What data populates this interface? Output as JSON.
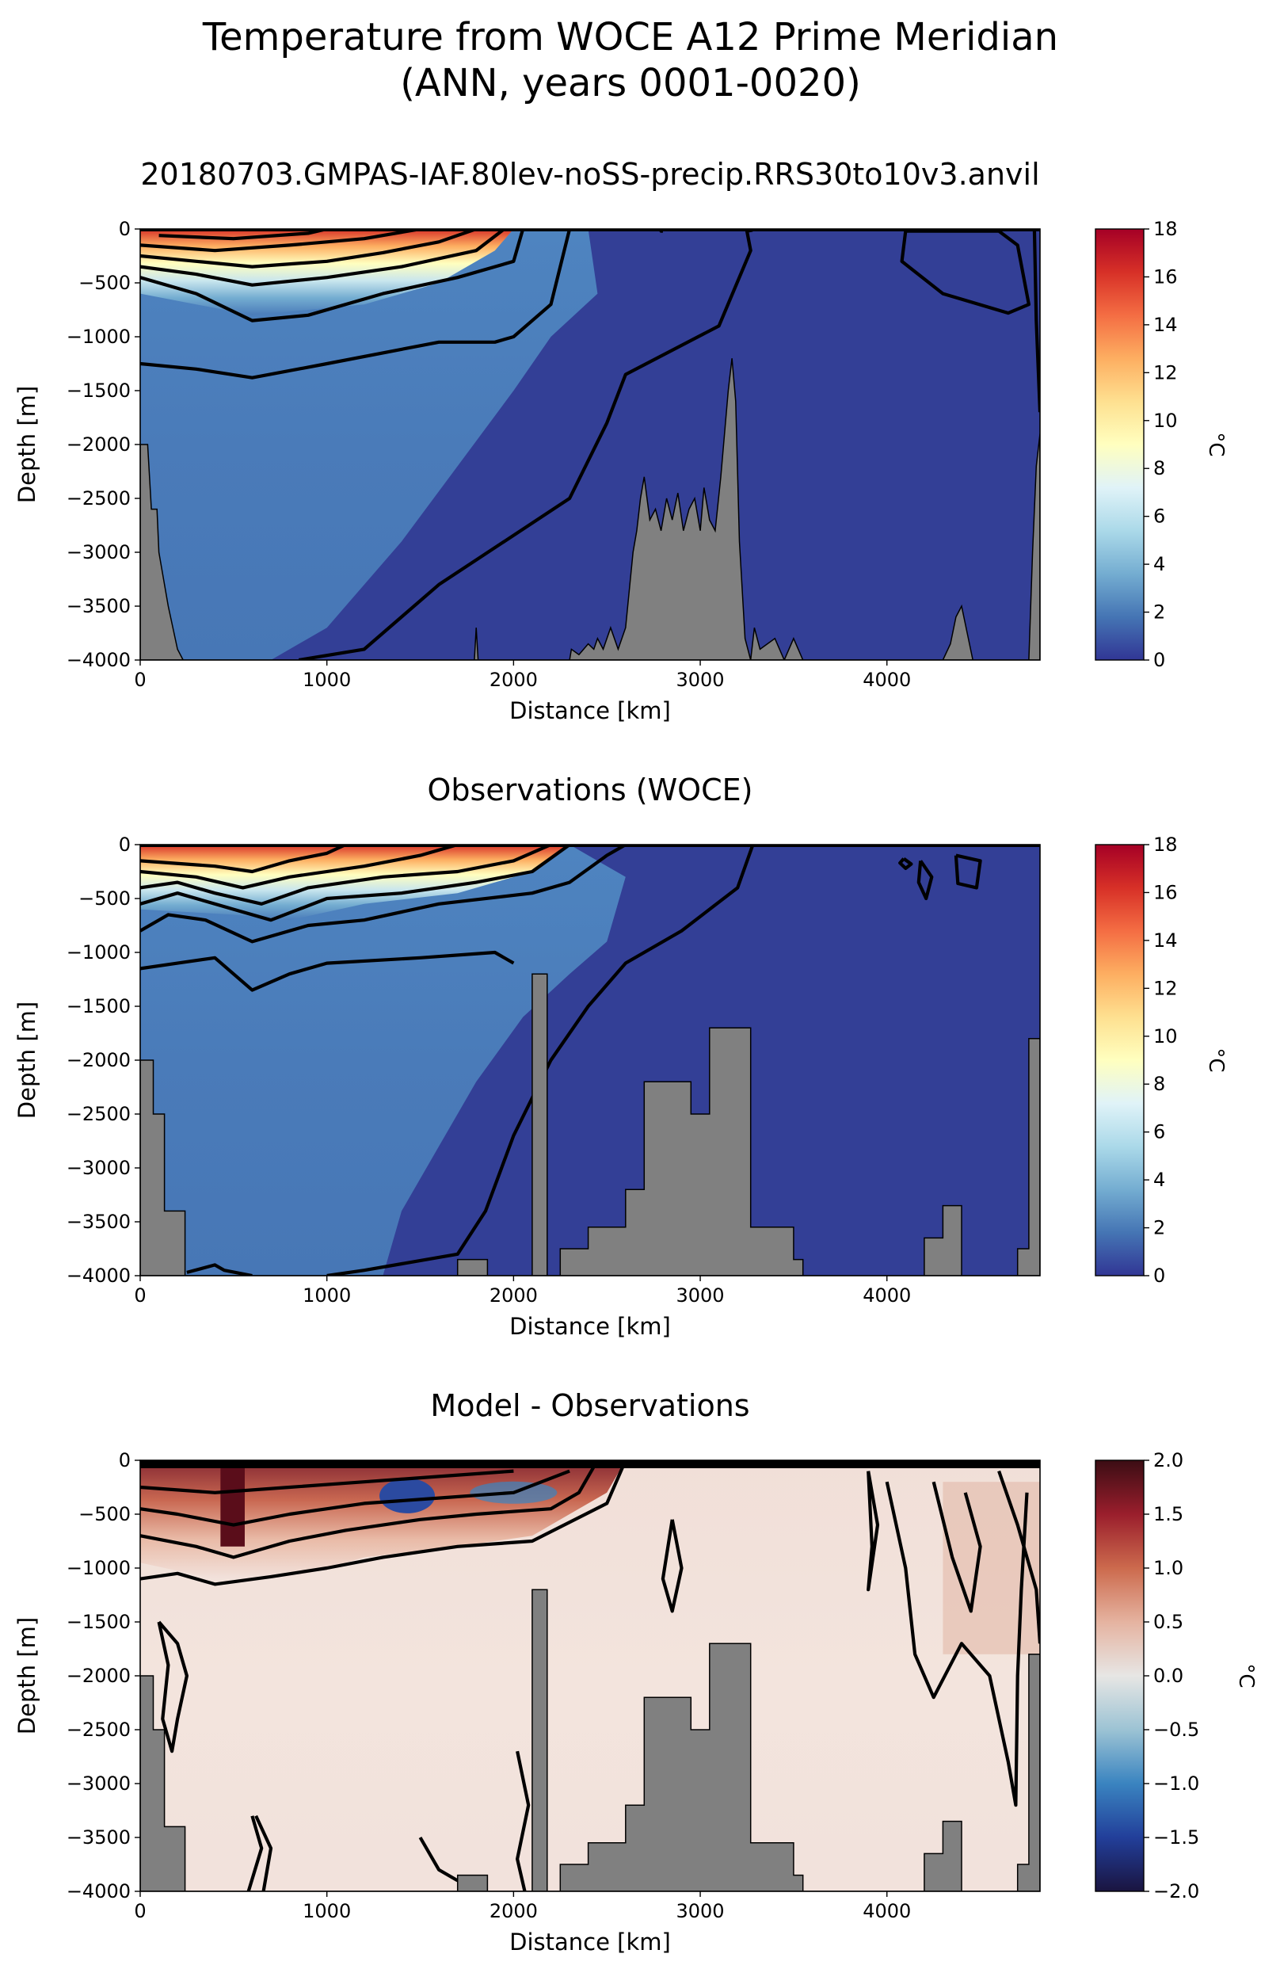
{
  "figure": {
    "title_line1": "Temperature from WOCE A12 Prime Meridian",
    "title_line2": "(ANN, years 0001-0020)"
  },
  "chart_data": [
    {
      "type": "heatmap",
      "title": "20180703.GMPAS-IAF.80lev-noSS-precip.RRS30to10v3.anvil",
      "xlabel": "Distance [km]",
      "ylabel": "Depth [m]",
      "xlim": [
        0,
        4820
      ],
      "ylim": [
        -4000,
        0
      ],
      "xticks": [
        0,
        1000,
        2000,
        3000,
        4000
      ],
      "yticks": [
        0,
        -500,
        -1000,
        -1500,
        -2000,
        -2500,
        -3000,
        -3500,
        -4000
      ],
      "colorbar": {
        "label": "°C",
        "min": 0,
        "max": 18,
        "ticks": [
          0,
          2,
          4,
          6,
          8,
          10,
          12,
          14,
          16,
          18
        ],
        "colormap": "RdYlBu_r"
      },
      "contour_levels": [
        0,
        1,
        2,
        4,
        6,
        8,
        10,
        12,
        14,
        16
      ],
      "bathymetry_color": "#808080"
    },
    {
      "type": "heatmap",
      "title": "Observations (WOCE)",
      "xlabel": "Distance [km]",
      "ylabel": "Depth [m]",
      "xlim": [
        0,
        4820
      ],
      "ylim": [
        -4000,
        0
      ],
      "xticks": [
        0,
        1000,
        2000,
        3000,
        4000
      ],
      "yticks": [
        0,
        -500,
        -1000,
        -1500,
        -2000,
        -2500,
        -3000,
        -3500,
        -4000
      ],
      "colorbar": {
        "label": "°C",
        "min": 0,
        "max": 18,
        "ticks": [
          0,
          2,
          4,
          6,
          8,
          10,
          12,
          14,
          16,
          18
        ],
        "colormap": "RdYlBu_r"
      },
      "contour_levels": [
        0,
        1,
        2,
        4,
        6,
        8,
        10,
        12,
        14,
        16
      ],
      "bathymetry_color": "#808080"
    },
    {
      "type": "heatmap",
      "title": "Model - Observations",
      "xlabel": "Distance [km]",
      "ylabel": "Depth [m]",
      "xlim": [
        0,
        4820
      ],
      "ylim": [
        -4000,
        0
      ],
      "xticks": [
        0,
        1000,
        2000,
        3000,
        4000
      ],
      "yticks": [
        0,
        -500,
        -1000,
        -1500,
        -2000,
        -2500,
        -3000,
        -3500,
        -4000
      ],
      "colorbar": {
        "label": "°C",
        "min": -2.0,
        "max": 2.0,
        "ticks": [
          -2.0,
          -1.5,
          -1.0,
          -0.5,
          0.0,
          0.5,
          1.0,
          1.5,
          2.0
        ],
        "colormap": "balance"
      },
      "contour_levels": [
        -2.0,
        -1.5,
        -1.0,
        -0.5,
        0.0,
        0.5,
        1.0,
        1.5,
        2.0
      ],
      "bathymetry_color": "#808080"
    }
  ]
}
